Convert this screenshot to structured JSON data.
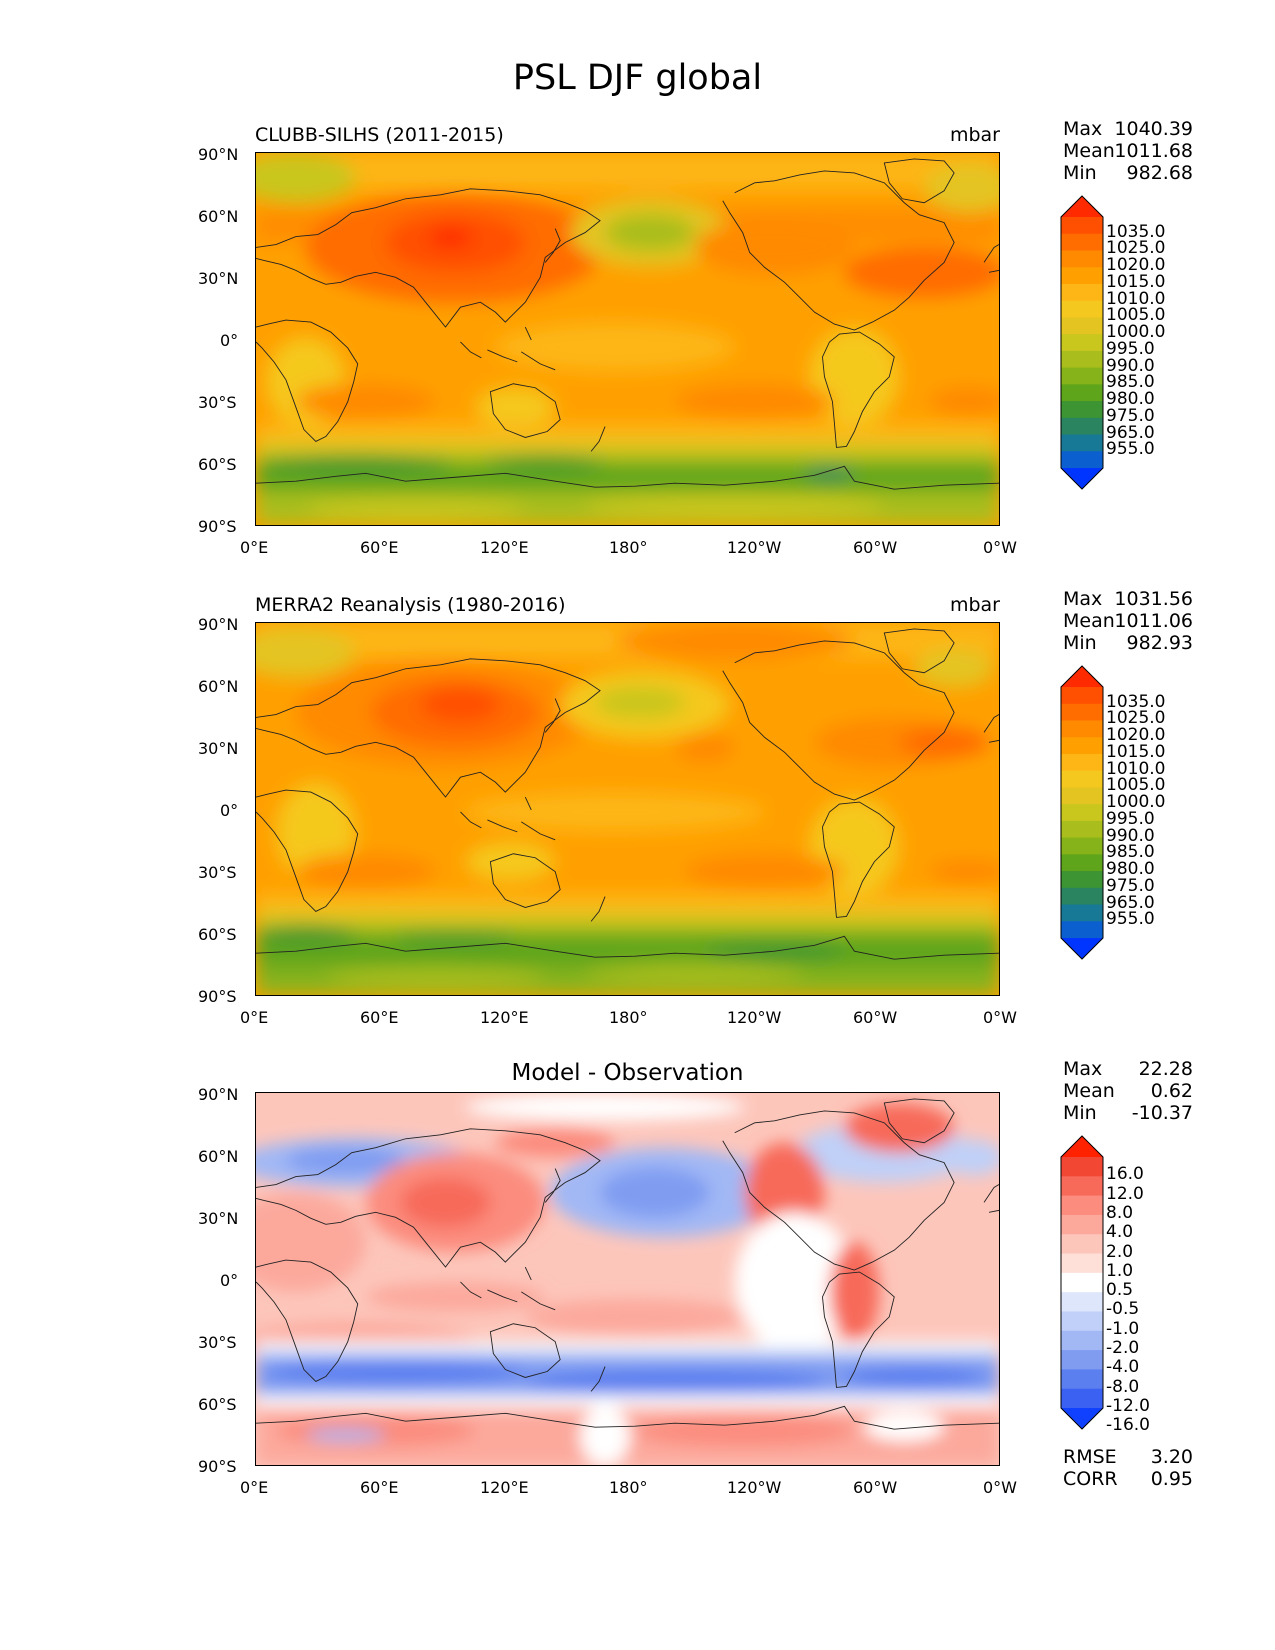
{
  "title": "PSL DJF global",
  "axes": {
    "lat_ticks": [
      "90°N",
      "60°N",
      "30°N",
      "0°",
      "30°S",
      "60°S",
      "90°S"
    ],
    "lon_ticks": [
      "0°E",
      "60°E",
      "120°E",
      "180°",
      "120°W",
      "60°W",
      "0°W"
    ]
  },
  "panels": [
    {
      "title": "CLUBB-SILHS (2011-2015)",
      "units": "mbar",
      "stats": [
        {
          "label": "Max",
          "value": "1040.39"
        },
        {
          "label": "Mean",
          "value": "1011.68"
        },
        {
          "label": "Min",
          "value": "982.68"
        }
      ],
      "colorbar_labels": [
        "1035.0",
        "1025.0",
        "1020.0",
        "1015.0",
        "1010.0",
        "1005.0",
        "1000.0",
        "995.0",
        "990.0",
        "985.0",
        "980.0",
        "975.0",
        "965.0",
        "955.0"
      ],
      "colorbar_colors": [
        "#ff2a00",
        "#ff4f00",
        "#ff6c00",
        "#ff8a00",
        "#ffa000",
        "#fdb616",
        "#f5c81f",
        "#e4c421",
        "#c9c61e",
        "#a9be1c",
        "#86b31a",
        "#5fa51b",
        "#3d9432",
        "#2a8460",
        "#177996",
        "#0c5fcf",
        "#0034ff"
      ]
    },
    {
      "title": "MERRA2 Reanalysis (1980-2016)",
      "units": "mbar",
      "stats": [
        {
          "label": "Max",
          "value": "1031.56"
        },
        {
          "label": "Mean",
          "value": "1011.06"
        },
        {
          "label": "Min",
          "value": "982.93"
        }
      ],
      "colorbar_labels": [
        "1035.0",
        "1025.0",
        "1020.0",
        "1015.0",
        "1010.0",
        "1005.0",
        "1000.0",
        "995.0",
        "990.0",
        "985.0",
        "980.0",
        "975.0",
        "965.0",
        "955.0"
      ],
      "colorbar_colors": [
        "#ff2a00",
        "#ff4f00",
        "#ff6c00",
        "#ff8a00",
        "#ffa000",
        "#fdb616",
        "#f5c81f",
        "#e4c421",
        "#c9c61e",
        "#a9be1c",
        "#86b31a",
        "#5fa51b",
        "#3d9432",
        "#2a8460",
        "#177996",
        "#0c5fcf",
        "#0034ff"
      ]
    },
    {
      "title": "Model - Observation",
      "units": "",
      "stats": [
        {
          "label": "Max",
          "value": "22.28"
        },
        {
          "label": "Mean",
          "value": "0.62"
        },
        {
          "label": "Min",
          "value": "-10.37"
        }
      ],
      "bottom_stats": [
        {
          "label": "RMSE",
          "value": "3.20"
        },
        {
          "label": "CORR",
          "value": "0.95"
        }
      ],
      "colorbar_labels": [
        "16.0",
        "12.0",
        "8.0",
        "4.0",
        "2.0",
        "1.0",
        "0.5",
        "-0.5",
        "-1.0",
        "-2.0",
        "-4.0",
        "-8.0",
        "-12.0",
        "-16.0"
      ],
      "colorbar_colors": [
        "#ff2200",
        "#f24833",
        "#f76a5a",
        "#fb8c7e",
        "#fca99c",
        "#fdc6bb",
        "#fee0d8",
        "#ffffff",
        "#dde6fb",
        "#c0d0f8",
        "#a1b8f5",
        "#7f9cf1",
        "#5c7ff0",
        "#3a61f2",
        "#1041ff"
      ]
    }
  ]
}
